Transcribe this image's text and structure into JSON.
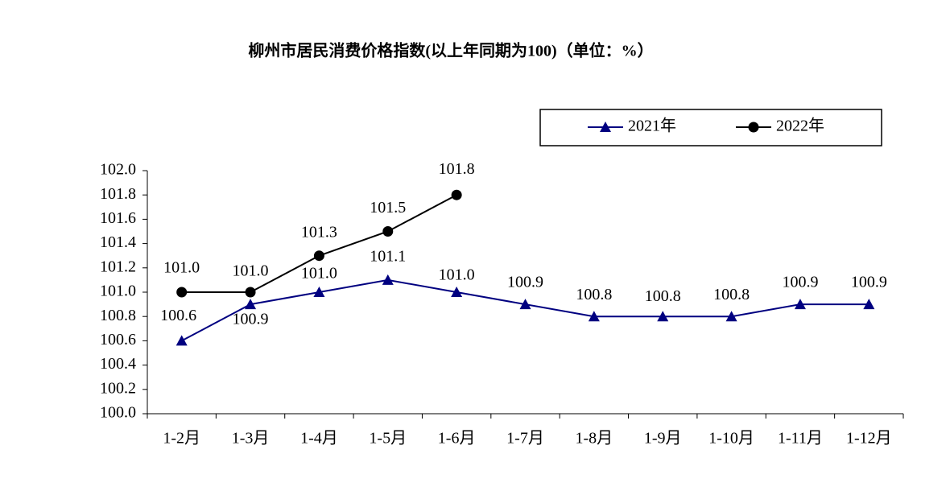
{
  "chart_data": {
    "type": "line",
    "title": "柳州市居民消费价格指数(以上年同期为100)（单位：%）",
    "categories": [
      "1-2月",
      "1-3月",
      "1-4月",
      "1-5月",
      "1-6月",
      "1-7月",
      "1-8月",
      "1-9月",
      "1-10月",
      "1-11月",
      "1-12月"
    ],
    "series": [
      {
        "name": "2021年",
        "color": "#000080",
        "marker": "triangle",
        "values": [
          100.6,
          100.9,
          101,
          101.1,
          101,
          100.9,
          100.8,
          100.8,
          100.8,
          100.9,
          100.9
        ],
        "value_labels": [
          "100.6",
          "100.9",
          "101.0",
          "101.1",
          "101.0",
          "100.9",
          "100.8",
          "100.8",
          "100.8",
          "100.9",
          "100.9"
        ]
      },
      {
        "name": "2022年",
        "color": "#000000",
        "marker": "circle",
        "values": [
          101,
          101,
          101.3,
          101.5,
          101.8,
          null,
          null,
          null,
          null,
          null,
          null
        ],
        "value_labels": [
          "101.0",
          "101.0",
          "101.3",
          "101.5",
          "101.8",
          null,
          null,
          null,
          null,
          null,
          null
        ]
      }
    ],
    "ylim": [
      100,
      102
    ],
    "yticks": [
      {
        "value": 100,
        "label": "100.0"
      },
      100.2,
      100.4,
      100.6,
      100.8,
      {
        "value": 101,
        "label": "101.0"
      },
      101.2,
      101.4,
      101.6,
      101.8,
      {
        "value": 102,
        "label": "102.0"
      }
    ],
    "legend": "top-right"
  }
}
